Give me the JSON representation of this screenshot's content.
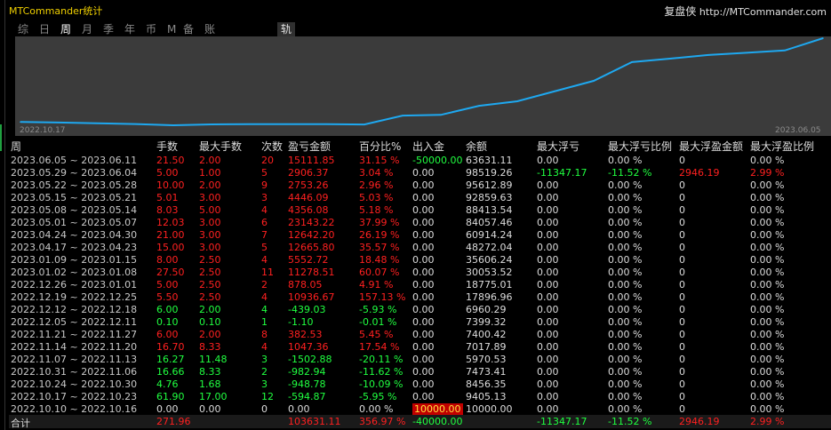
{
  "window": {
    "title": "MTCommander统计",
    "brand_cn": "复盘侠",
    "brand_url": "http://MTCommander.com"
  },
  "tabs": [
    {
      "label": "综",
      "active": false
    },
    {
      "label": "日",
      "active": false
    },
    {
      "label": "周",
      "active": true
    },
    {
      "label": "月",
      "active": false
    },
    {
      "label": "季",
      "active": false
    },
    {
      "label": "年",
      "active": false
    },
    {
      "label": "币",
      "active": false
    },
    {
      "label": "M",
      "active": false
    },
    {
      "label": "备",
      "active": false
    },
    {
      "label": "账户",
      "active": false
    },
    {
      "label": "轨迹",
      "active": false
    }
  ],
  "chart_data": {
    "type": "line",
    "x_start_label": "2022.10.17",
    "x_end_label": "2023.06.05",
    "line_color": "#1ea8f0",
    "background": "#3b3b3b",
    "x": [
      "2022.10.10",
      "2022.10.17",
      "2022.10.24",
      "2022.10.31",
      "2022.11.07",
      "2022.11.14",
      "2022.11.21",
      "2022.11.28",
      "2022.12.05",
      "2022.12.12",
      "2022.12.19",
      "2022.12.26",
      "2023.01.02",
      "2023.01.09",
      "2023.04.17",
      "2023.04.24",
      "2023.05.01",
      "2023.05.08",
      "2023.05.15",
      "2023.05.22",
      "2023.05.29",
      "2023.06.05"
    ],
    "values": [
      10000.0,
      9405.13,
      8456.35,
      7473.41,
      5970.53,
      7017.89,
      7400.42,
      7400.42,
      7399.32,
      6960.29,
      17896.96,
      18775.01,
      30053.52,
      35606.24,
      48272.04,
      60914.24,
      84057.46,
      88413.54,
      92859.63,
      95612.89,
      98519.26,
      113631.11
    ]
  },
  "table": {
    "headers": [
      "周",
      "手数",
      "最大手数",
      "次数",
      "盈亏金额",
      "百分比%",
      "出入金",
      "余额",
      "最大浮亏",
      "最大浮亏比例",
      "最大浮盈金额",
      "最大浮盈比例"
    ],
    "rows": [
      {
        "week": "2023.06.05 ~ 2023.06.11",
        "lots": "21.50",
        "max_lots": "2.00",
        "count": "20",
        "pnl": "15111.85",
        "pct": "31.15 %",
        "flow": "-50000.00",
        "balance": "63631.11",
        "max_dd": "0.00",
        "max_dd_pct": "0.00 %",
        "max_fp": "0",
        "max_fp_pct": "0.00 %",
        "color": "red"
      },
      {
        "week": "2023.05.29 ~ 2023.06.04",
        "lots": "5.00",
        "max_lots": "1.00",
        "count": "5",
        "pnl": "2906.37",
        "pct": "3.04 %",
        "flow": "0.00",
        "balance": "98519.26",
        "max_dd": "-11347.17",
        "max_dd_pct": "-11.52 %",
        "max_fp": "2946.19",
        "max_fp_pct": "2.99 %",
        "color": "red"
      },
      {
        "week": "2023.05.22 ~ 2023.05.28",
        "lots": "10.00",
        "max_lots": "2.00",
        "count": "9",
        "pnl": "2753.26",
        "pct": "2.96 %",
        "flow": "0.00",
        "balance": "95612.89",
        "max_dd": "0.00",
        "max_dd_pct": "0.00 %",
        "max_fp": "0",
        "max_fp_pct": "0.00 %",
        "color": "red"
      },
      {
        "week": "2023.05.15 ~ 2023.05.21",
        "lots": "5.01",
        "max_lots": "3.00",
        "count": "3",
        "pnl": "4446.09",
        "pct": "5.03 %",
        "flow": "0.00",
        "balance": "92859.63",
        "max_dd": "0.00",
        "max_dd_pct": "0.00 %",
        "max_fp": "0",
        "max_fp_pct": "0.00 %",
        "color": "red"
      },
      {
        "week": "2023.05.08 ~ 2023.05.14",
        "lots": "8.03",
        "max_lots": "5.00",
        "count": "4",
        "pnl": "4356.08",
        "pct": "5.18 %",
        "flow": "0.00",
        "balance": "88413.54",
        "max_dd": "0.00",
        "max_dd_pct": "0.00 %",
        "max_fp": "0",
        "max_fp_pct": "0.00 %",
        "color": "red"
      },
      {
        "week": "2023.05.01 ~ 2023.05.07",
        "lots": "12.03",
        "max_lots": "3.00",
        "count": "6",
        "pnl": "23143.22",
        "pct": "37.99 %",
        "flow": "0.00",
        "balance": "84057.46",
        "max_dd": "0.00",
        "max_dd_pct": "0.00 %",
        "max_fp": "0",
        "max_fp_pct": "0.00 %",
        "color": "red"
      },
      {
        "week": "2023.04.24 ~ 2023.04.30",
        "lots": "21.00",
        "max_lots": "3.00",
        "count": "7",
        "pnl": "12642.20",
        "pct": "26.19 %",
        "flow": "0.00",
        "balance": "60914.24",
        "max_dd": "0.00",
        "max_dd_pct": "0.00 %",
        "max_fp": "0",
        "max_fp_pct": "0.00 %",
        "color": "red"
      },
      {
        "week": "2023.04.17 ~ 2023.04.23",
        "lots": "15.00",
        "max_lots": "3.00",
        "count": "5",
        "pnl": "12665.80",
        "pct": "35.57 %",
        "flow": "0.00",
        "balance": "48272.04",
        "max_dd": "0.00",
        "max_dd_pct": "0.00 %",
        "max_fp": "0",
        "max_fp_pct": "0.00 %",
        "color": "red"
      },
      {
        "week": "2023.01.09 ~ 2023.01.15",
        "lots": "8.00",
        "max_lots": "2.50",
        "count": "4",
        "pnl": "5552.72",
        "pct": "18.48 %",
        "flow": "0.00",
        "balance": "35606.24",
        "max_dd": "0.00",
        "max_dd_pct": "0.00 %",
        "max_fp": "0",
        "max_fp_pct": "0.00 %",
        "color": "red"
      },
      {
        "week": "2023.01.02 ~ 2023.01.08",
        "lots": "27.50",
        "max_lots": "2.50",
        "count": "11",
        "pnl": "11278.51",
        "pct": "60.07 %",
        "flow": "0.00",
        "balance": "30053.52",
        "max_dd": "0.00",
        "max_dd_pct": "0.00 %",
        "max_fp": "0",
        "max_fp_pct": "0.00 %",
        "color": "red"
      },
      {
        "week": "2022.12.26 ~ 2023.01.01",
        "lots": "5.00",
        "max_lots": "2.50",
        "count": "2",
        "pnl": "878.05",
        "pct": "4.91 %",
        "flow": "0.00",
        "balance": "18775.01",
        "max_dd": "0.00",
        "max_dd_pct": "0.00 %",
        "max_fp": "0",
        "max_fp_pct": "0.00 %",
        "color": "red"
      },
      {
        "week": "2022.12.19 ~ 2022.12.25",
        "lots": "5.50",
        "max_lots": "2.50",
        "count": "4",
        "pnl": "10936.67",
        "pct": "157.13 %",
        "flow": "0.00",
        "balance": "17896.96",
        "max_dd": "0.00",
        "max_dd_pct": "0.00 %",
        "max_fp": "0",
        "max_fp_pct": "0.00 %",
        "color": "red"
      },
      {
        "week": "2022.12.12 ~ 2022.12.18",
        "lots": "6.00",
        "max_lots": "2.00",
        "count": "4",
        "pnl": "-439.03",
        "pct": "-5.93 %",
        "flow": "0.00",
        "balance": "6960.29",
        "max_dd": "0.00",
        "max_dd_pct": "0.00 %",
        "max_fp": "0",
        "max_fp_pct": "0.00 %",
        "color": "green"
      },
      {
        "week": "2022.12.05 ~ 2022.12.11",
        "lots": "0.10",
        "max_lots": "0.10",
        "count": "1",
        "pnl": "-1.10",
        "pct": "-0.01 %",
        "flow": "0.00",
        "balance": "7399.32",
        "max_dd": "0.00",
        "max_dd_pct": "0.00 %",
        "max_fp": "0",
        "max_fp_pct": "0.00 %",
        "color": "green"
      },
      {
        "week": "2022.11.21 ~ 2022.11.27",
        "lots": "6.00",
        "max_lots": "2.00",
        "count": "8",
        "pnl": "382.53",
        "pct": "5.45 %",
        "flow": "0.00",
        "balance": "7400.42",
        "max_dd": "0.00",
        "max_dd_pct": "0.00 %",
        "max_fp": "0",
        "max_fp_pct": "0.00 %",
        "color": "red"
      },
      {
        "week": "2022.11.14 ~ 2022.11.20",
        "lots": "16.70",
        "max_lots": "8.33",
        "count": "4",
        "pnl": "1047.36",
        "pct": "17.54 %",
        "flow": "0.00",
        "balance": "7017.89",
        "max_dd": "0.00",
        "max_dd_pct": "0.00 %",
        "max_fp": "0",
        "max_fp_pct": "0.00 %",
        "color": "red"
      },
      {
        "week": "2022.11.07 ~ 2022.11.13",
        "lots": "16.27",
        "max_lots": "11.48",
        "count": "3",
        "pnl": "-1502.88",
        "pct": "-20.11 %",
        "flow": "0.00",
        "balance": "5970.53",
        "max_dd": "0.00",
        "max_dd_pct": "0.00 %",
        "max_fp": "0",
        "max_fp_pct": "0.00 %",
        "color": "green"
      },
      {
        "week": "2022.10.31 ~ 2022.11.06",
        "lots": "16.66",
        "max_lots": "8.33",
        "count": "2",
        "pnl": "-982.94",
        "pct": "-11.62 %",
        "flow": "0.00",
        "balance": "7473.41",
        "max_dd": "0.00",
        "max_dd_pct": "0.00 %",
        "max_fp": "0",
        "max_fp_pct": "0.00 %",
        "color": "green"
      },
      {
        "week": "2022.10.24 ~ 2022.10.30",
        "lots": "4.76",
        "max_lots": "1.68",
        "count": "3",
        "pnl": "-948.78",
        "pct": "-10.09 %",
        "flow": "0.00",
        "balance": "8456.35",
        "max_dd": "0.00",
        "max_dd_pct": "0.00 %",
        "max_fp": "0",
        "max_fp_pct": "0.00 %",
        "color": "green"
      },
      {
        "week": "2022.10.17 ~ 2022.10.23",
        "lots": "61.90",
        "max_lots": "17.00",
        "count": "12",
        "pnl": "-594.87",
        "pct": "-5.95 %",
        "flow": "0.00",
        "balance": "9405.13",
        "max_dd": "0.00",
        "max_dd_pct": "0.00 %",
        "max_fp": "0",
        "max_fp_pct": "0.00 %",
        "color": "green"
      },
      {
        "week": "2022.10.10 ~ 2022.10.16",
        "lots": "0.00",
        "max_lots": "0.00",
        "count": "0",
        "pnl": "0.00",
        "pct": "0.00 %",
        "flow": "10000.00",
        "balance": "10000.00",
        "max_dd": "0.00",
        "max_dd_pct": "0.00 %",
        "max_fp": "0",
        "max_fp_pct": "0.00 %",
        "color": "white"
      }
    ],
    "total": {
      "label": "合计",
      "lots": "271.96",
      "pnl": "103631.11",
      "pct": "356.97 %",
      "flow": "-40000.00",
      "max_dd": "-11347.17",
      "max_dd_pct": "-11.52 %",
      "max_fp": "2946.19",
      "max_fp_pct": "2.99 %"
    }
  },
  "colors": {
    "profit": "#ff2020",
    "loss": "#20ff40",
    "title": "#f0d000",
    "line": "#1ea8f0"
  }
}
